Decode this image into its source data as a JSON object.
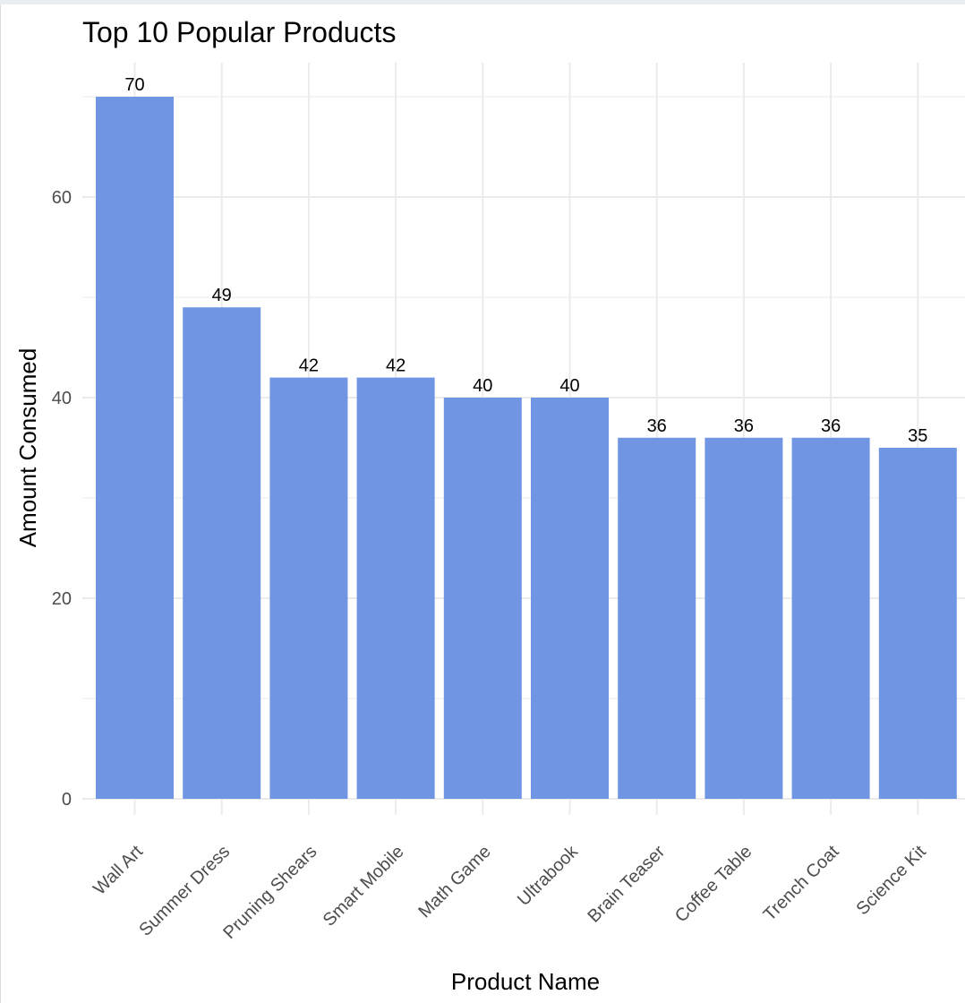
{
  "chart_data": {
    "type": "bar",
    "title": "Top 10 Popular Products",
    "xlabel": "Product Name",
    "ylabel": "Amount Consumed",
    "categories": [
      "Wall Art",
      "Summer Dress",
      "Pruning Shears",
      "Smart Mobile",
      "Math Game",
      "Ultrabook",
      "Brain Teaser",
      "Coffee Table",
      "Trench Coat",
      "Science Kit"
    ],
    "values": [
      70,
      49,
      42,
      42,
      40,
      40,
      36,
      36,
      36,
      35
    ],
    "yticks": [
      0,
      20,
      40,
      60
    ],
    "ylim": [
      0,
      70
    ],
    "grid": true,
    "legend": "none",
    "bar_color": "#6f95e3",
    "x_tick_rotation_deg": 45
  }
}
